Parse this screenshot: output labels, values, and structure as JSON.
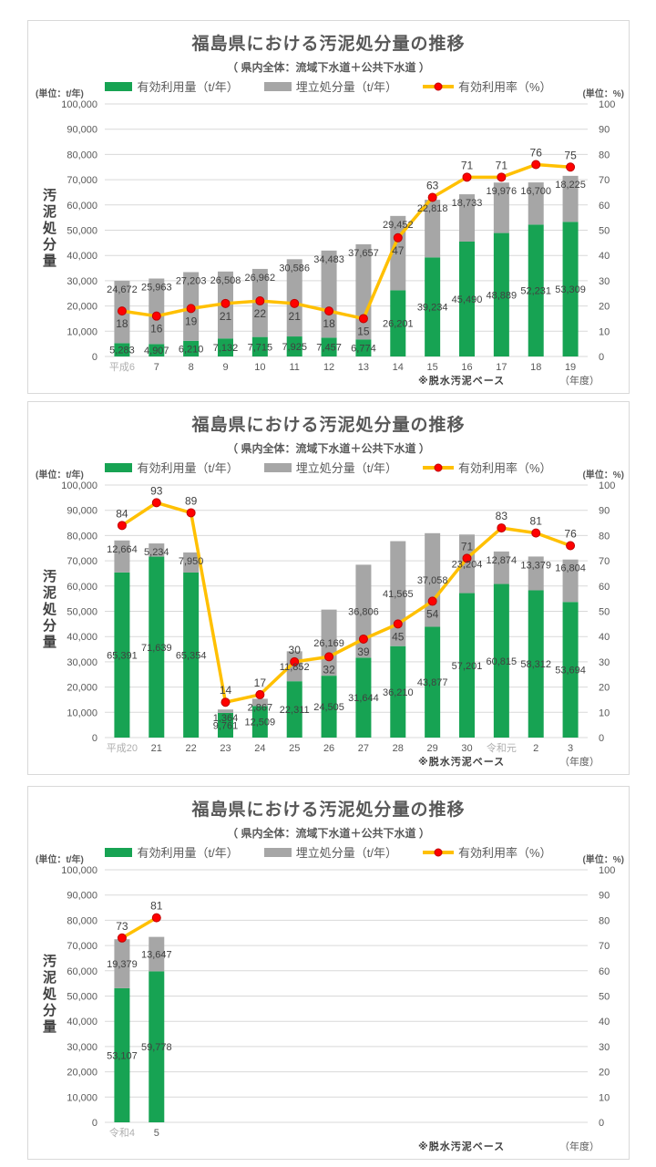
{
  "common": {
    "title": "福島県における汚泥処分量の推移",
    "subtitle": "（ 県内全体：流域下水道＋公共下水道 ）",
    "unit_left": "(単位：t/年)",
    "unit_right": "(単位：%)",
    "y_axis_title": "汚泥処分量",
    "note": "※脱水汚泥ベース",
    "x_axis_unit": "（年度）",
    "legend": [
      {
        "label": "有効利用量（t/年）",
        "type": "bar"
      },
      {
        "label": "埋立処分量（t/年）",
        "type": "bar"
      },
      {
        "label": "有効利用率（%）",
        "type": "line"
      }
    ],
    "colors": {
      "effective_use_green": "#17a353",
      "landfill_gray": "#a6a6a6",
      "rate_line_yellow": "#ffc000",
      "rate_marker_red": "#ff0000",
      "rate_marker_edge": "#c00000",
      "grid": "#d9d9d9",
      "tick_text": "#595959",
      "value_label": "#404040",
      "era_label_muted": "#afafaf"
    }
  },
  "chart_data": [
    {
      "type": "bar",
      "subtype": "stacked-bar-with-line",
      "title": "福島県における汚泥処分量の推移",
      "categories": [
        "平成6",
        "7",
        "8",
        "9",
        "10",
        "11",
        "12",
        "13",
        "14",
        "15",
        "16",
        "17",
        "18",
        "19"
      ],
      "era_label_indices": [
        0
      ],
      "series": [
        {
          "name": "有効利用量（t/年）",
          "axis": "left",
          "values": [
            5283,
            4907,
            6210,
            7132,
            7715,
            7925,
            7457,
            6774,
            26201,
            39234,
            45490,
            48889,
            52231,
            53309
          ]
        },
        {
          "name": "埋立処分量（t/年）",
          "axis": "left",
          "values": [
            24672,
            25963,
            27203,
            26508,
            26962,
            30586,
            34483,
            37657,
            29452,
            22818,
            18733,
            19976,
            16700,
            18225
          ]
        },
        {
          "name": "有効利用率（%）",
          "axis": "right",
          "values": [
            18,
            16,
            19,
            21,
            22,
            21,
            18,
            15,
            47,
            63,
            71,
            71,
            76,
            75
          ]
        }
      ],
      "ylim": [
        0,
        100000
      ],
      "ytick_step": 10000,
      "y2lim": [
        0,
        100
      ],
      "y2tick_step": 10,
      "slots": 14,
      "grid": true,
      "legend_position": "top",
      "rate_label_side": [
        "below",
        "below",
        "below",
        "below",
        "below",
        "below",
        "below",
        "below",
        "below",
        "above",
        "above",
        "above",
        "above",
        "above"
      ],
      "landfill_label_mode": [
        "end",
        "end",
        "end",
        "end",
        "end",
        "end",
        "end",
        "end",
        "end",
        "end",
        "end",
        "end",
        "end",
        "end"
      ]
    },
    {
      "type": "bar",
      "subtype": "stacked-bar-with-line",
      "title": "福島県における汚泥処分量の推移",
      "categories": [
        "平成20",
        "21",
        "22",
        "23",
        "24",
        "25",
        "26",
        "27",
        "28",
        "29",
        "30",
        "令和元",
        "2",
        "3"
      ],
      "era_label_indices": [
        0,
        11
      ],
      "series": [
        {
          "name": "有効利用量（t/年）",
          "axis": "left",
          "values": [
            65391,
            71639,
            65354,
            9761,
            12509,
            22311,
            24505,
            31644,
            36210,
            43877,
            57201,
            60815,
            58312,
            53694
          ]
        },
        {
          "name": "埋立処分量（t/年）",
          "axis": "left",
          "values": [
            12664,
            5234,
            7950,
            1364,
            2867,
            11852,
            26169,
            36806,
            41565,
            37058,
            23204,
            12874,
            13379,
            16804
          ]
        },
        {
          "name": "有効利用率（%）",
          "axis": "right",
          "values": [
            84,
            93,
            89,
            14,
            17,
            30,
            32,
            39,
            45,
            54,
            71,
            83,
            81,
            76
          ]
        }
      ],
      "ylim": [
        0,
        100000
      ],
      "ytick_step": 10000,
      "y2lim": [
        0,
        100
      ],
      "y2tick_step": 10,
      "slots": 14,
      "grid": true,
      "legend_position": "top",
      "rate_label_side": [
        "above",
        "above",
        "above",
        "above",
        "above",
        "above",
        "below",
        "below",
        "below",
        "below",
        "above",
        "above",
        "above",
        "above"
      ],
      "landfill_label_mode": [
        "end",
        "end",
        "end",
        "end",
        "end",
        "center",
        "center",
        "center",
        "center",
        "center",
        "center",
        "end",
        "end",
        "end"
      ]
    },
    {
      "type": "bar",
      "subtype": "stacked-bar-with-line",
      "title": "福島県における汚泥処分量の推移",
      "categories": [
        "令和4",
        "5"
      ],
      "era_label_indices": [
        0
      ],
      "series": [
        {
          "name": "有効利用量（t/年）",
          "axis": "left",
          "values": [
            53107,
            59778
          ]
        },
        {
          "name": "埋立処分量（t/年）",
          "axis": "left",
          "values": [
            19379,
            13647
          ]
        },
        {
          "name": "有効利用率（%）",
          "axis": "right",
          "values": [
            73,
            81
          ]
        }
      ],
      "ylim": [
        0,
        100000
      ],
      "ytick_step": 10000,
      "y2lim": [
        0,
        100
      ],
      "y2tick_step": 10,
      "slots": 14,
      "grid": true,
      "legend_position": "top",
      "rate_label_side": [
        "above",
        "above"
      ],
      "landfill_label_mode": [
        "center",
        "center"
      ]
    }
  ]
}
